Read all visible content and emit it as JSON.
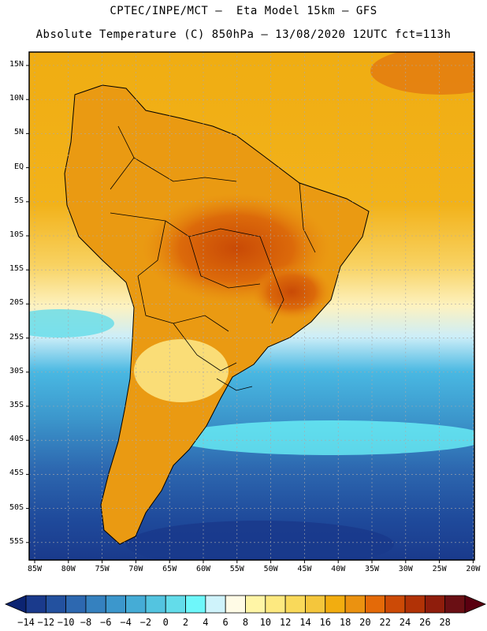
{
  "title_line1": "CPTEC/INPE/MCT –  Eta Model 15km – GFS",
  "title_line2": "Absolute Temperature (C) 850hPa – 13/08/2020 12UTC fct=113h",
  "lat_labels": [
    "15N",
    "10N",
    "5N",
    "EQ",
    "5S",
    "10S",
    "15S",
    "20S",
    "25S",
    "30S",
    "35S",
    "40S",
    "45S",
    "50S",
    "55S"
  ],
  "lon_labels": [
    "85W",
    "80W",
    "75W",
    "70W",
    "65W",
    "60W",
    "55W",
    "50W",
    "45W",
    "40W",
    "35W",
    "30W",
    "25W",
    "20W"
  ],
  "colorbar": {
    "labels": [
      "-14",
      "-12",
      "-10",
      "-8",
      "-6",
      "-4",
      "-2",
      "0",
      "2",
      "4",
      "6",
      "8",
      "10",
      "12",
      "14",
      "16",
      "18",
      "20",
      "22",
      "24",
      "26",
      "28"
    ],
    "colors": [
      "#1a3a8c",
      "#23519f",
      "#2d68b0",
      "#3581bf",
      "#3c97cc",
      "#45acd6",
      "#53c4e0",
      "#63dcea",
      "#6ef7fa",
      "#cff3fb",
      "#fffbe6",
      "#fff5a6",
      "#fde980",
      "#f9d95a",
      "#f4c63c",
      "#f2ad10",
      "#eb9210",
      "#e46a08",
      "#cc4a06",
      "#b13206",
      "#8f1d0c",
      "#6a0f14"
    ],
    "under_color": "#0c2472",
    "over_color": "#5a0010"
  },
  "legend": {
    "ocean_north": "#efaa10",
    "ocean_south": "#47b6e0",
    "land": "#dc7a14"
  }
}
